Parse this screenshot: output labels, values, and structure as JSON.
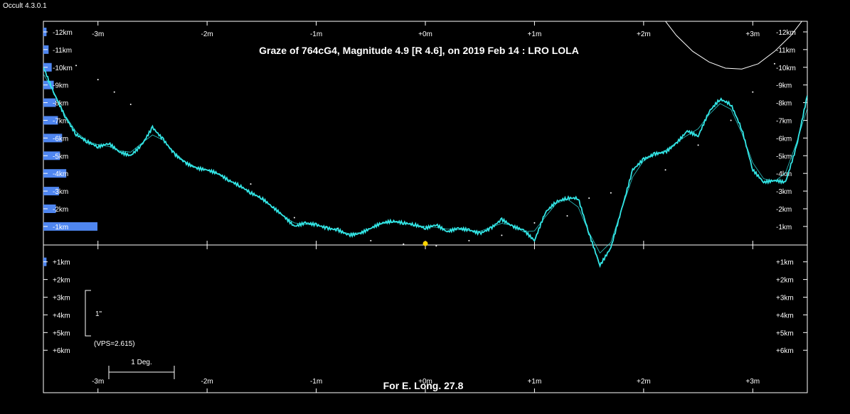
{
  "window": {
    "app_title": "Occult 4.3.0.1"
  },
  "chart_data": {
    "type": "line",
    "title": "Graze of  764cG4,  Magnitude 4.9 [R 4.6],  on 2019 Feb 14  :  LRO LOLA",
    "footer": "For E. Long. 27.8",
    "x_ticks": [
      "-3m",
      "-2m",
      "-1m",
      "+0m",
      "+1m",
      "+2m",
      "+3m"
    ],
    "x_tick_values": [
      -3,
      -2,
      -1,
      0,
      1,
      2,
      3
    ],
    "x_range": [
      -3.5,
      3.5
    ],
    "y_labels_neg": [
      "-12km",
      "-11km",
      "-10km",
      "-9km",
      "-8km",
      "-7km",
      "-6km",
      "-5km",
      "-4km",
      "-3km",
      "-2km",
      "-1km"
    ],
    "y_labels_pos": [
      "+1km",
      "+2km",
      "+3km",
      "+4km",
      "+5km",
      "+6km"
    ],
    "y_range": [
      -12.6,
      8.4
    ],
    "scale_bar_label": "1\"",
    "vps_label": "(VPS=2.615)",
    "deg_bar_label": "1 Deg.",
    "colors": {
      "profile": "#33e6e6",
      "histogram": "#4f86f0",
      "axis": "#ffffff",
      "star": "#ffd400"
    },
    "profile_x": [
      -3.5,
      -3.4,
      -3.3,
      -3.2,
      -3.1,
      -3.0,
      -2.9,
      -2.8,
      -2.7,
      -2.6,
      -2.5,
      -2.4,
      -2.3,
      -2.2,
      -2.1,
      -2.0,
      -1.9,
      -1.8,
      -1.7,
      -1.6,
      -1.5,
      -1.4,
      -1.3,
      -1.2,
      -1.1,
      -1.0,
      -0.9,
      -0.8,
      -0.7,
      -0.6,
      -0.5,
      -0.4,
      -0.3,
      -0.2,
      -0.1,
      0.0,
      0.1,
      0.2,
      0.3,
      0.4,
      0.5,
      0.6,
      0.7,
      0.8,
      0.9,
      1.0,
      1.1,
      1.2,
      1.3,
      1.4,
      1.5,
      1.6,
      1.7,
      1.8,
      1.9,
      2.0,
      2.1,
      2.2,
      2.3,
      2.4,
      2.5,
      2.6,
      2.7,
      2.8,
      2.9,
      3.0,
      3.1,
      3.2,
      3.3,
      3.4,
      3.5
    ],
    "profile_y": [
      -10.0,
      -8.5,
      -7.2,
      -6.2,
      -5.8,
      -5.5,
      -5.7,
      -5.2,
      -5.0,
      -5.6,
      -6.6,
      -5.9,
      -5.1,
      -4.6,
      -4.3,
      -4.2,
      -4.0,
      -3.6,
      -3.3,
      -2.9,
      -2.6,
      -2.1,
      -1.6,
      -1.0,
      -1.2,
      -1.1,
      -0.9,
      -0.8,
      -0.5,
      -0.6,
      -0.9,
      -1.2,
      -1.3,
      -1.2,
      -1.1,
      -0.9,
      -1.1,
      -0.7,
      -0.9,
      -0.8,
      -0.6,
      -0.9,
      -1.4,
      -1.0,
      -0.8,
      -0.2,
      -1.8,
      -2.4,
      -2.6,
      -2.6,
      -0.6,
      1.2,
      0.2,
      -2.0,
      -4.2,
      -4.8,
      -5.1,
      -5.2,
      -5.7,
      -6.4,
      -6.1,
      -7.5,
      -8.2,
      -7.9,
      -6.5,
      -4.2,
      -3.5,
      -3.6,
      -3.5,
      -5.5,
      -8.4
    ],
    "dots_x": [
      -3.2,
      -3.0,
      -2.85,
      -2.7,
      -1.6,
      -1.2,
      -0.8,
      -0.5,
      -0.2,
      0.1,
      0.4,
      0.7,
      1.0,
      1.3,
      1.5,
      1.7,
      2.2,
      2.5,
      2.8,
      3.0,
      3.2
    ],
    "dots_y": [
      -10.1,
      -9.3,
      -8.6,
      -7.9,
      -3.4,
      -1.5,
      -0.9,
      -0.2,
      0.0,
      0.1,
      -0.2,
      -0.5,
      -1.2,
      -1.6,
      -2.6,
      -2.9,
      -4.2,
      -5.6,
      -7.0,
      -8.6,
      -10.2
    ],
    "limb_x": [
      2.15,
      2.3,
      2.45,
      2.6,
      2.75,
      2.9,
      3.05,
      3.2,
      3.35,
      3.5
    ],
    "limb_y": [
      -13.0,
      -11.8,
      -10.9,
      -10.3,
      -9.95,
      -9.9,
      -10.2,
      -10.9,
      -11.8,
      -13.0
    ],
    "histogram_y": [
      -12,
      -11,
      -10,
      -9,
      -8,
      -7,
      -6,
      -5,
      -4,
      -3,
      -2,
      -1,
      1
    ],
    "histogram_count": [
      3,
      5,
      8,
      10,
      12,
      14,
      18,
      16,
      22,
      15,
      12,
      52,
      3
    ]
  }
}
